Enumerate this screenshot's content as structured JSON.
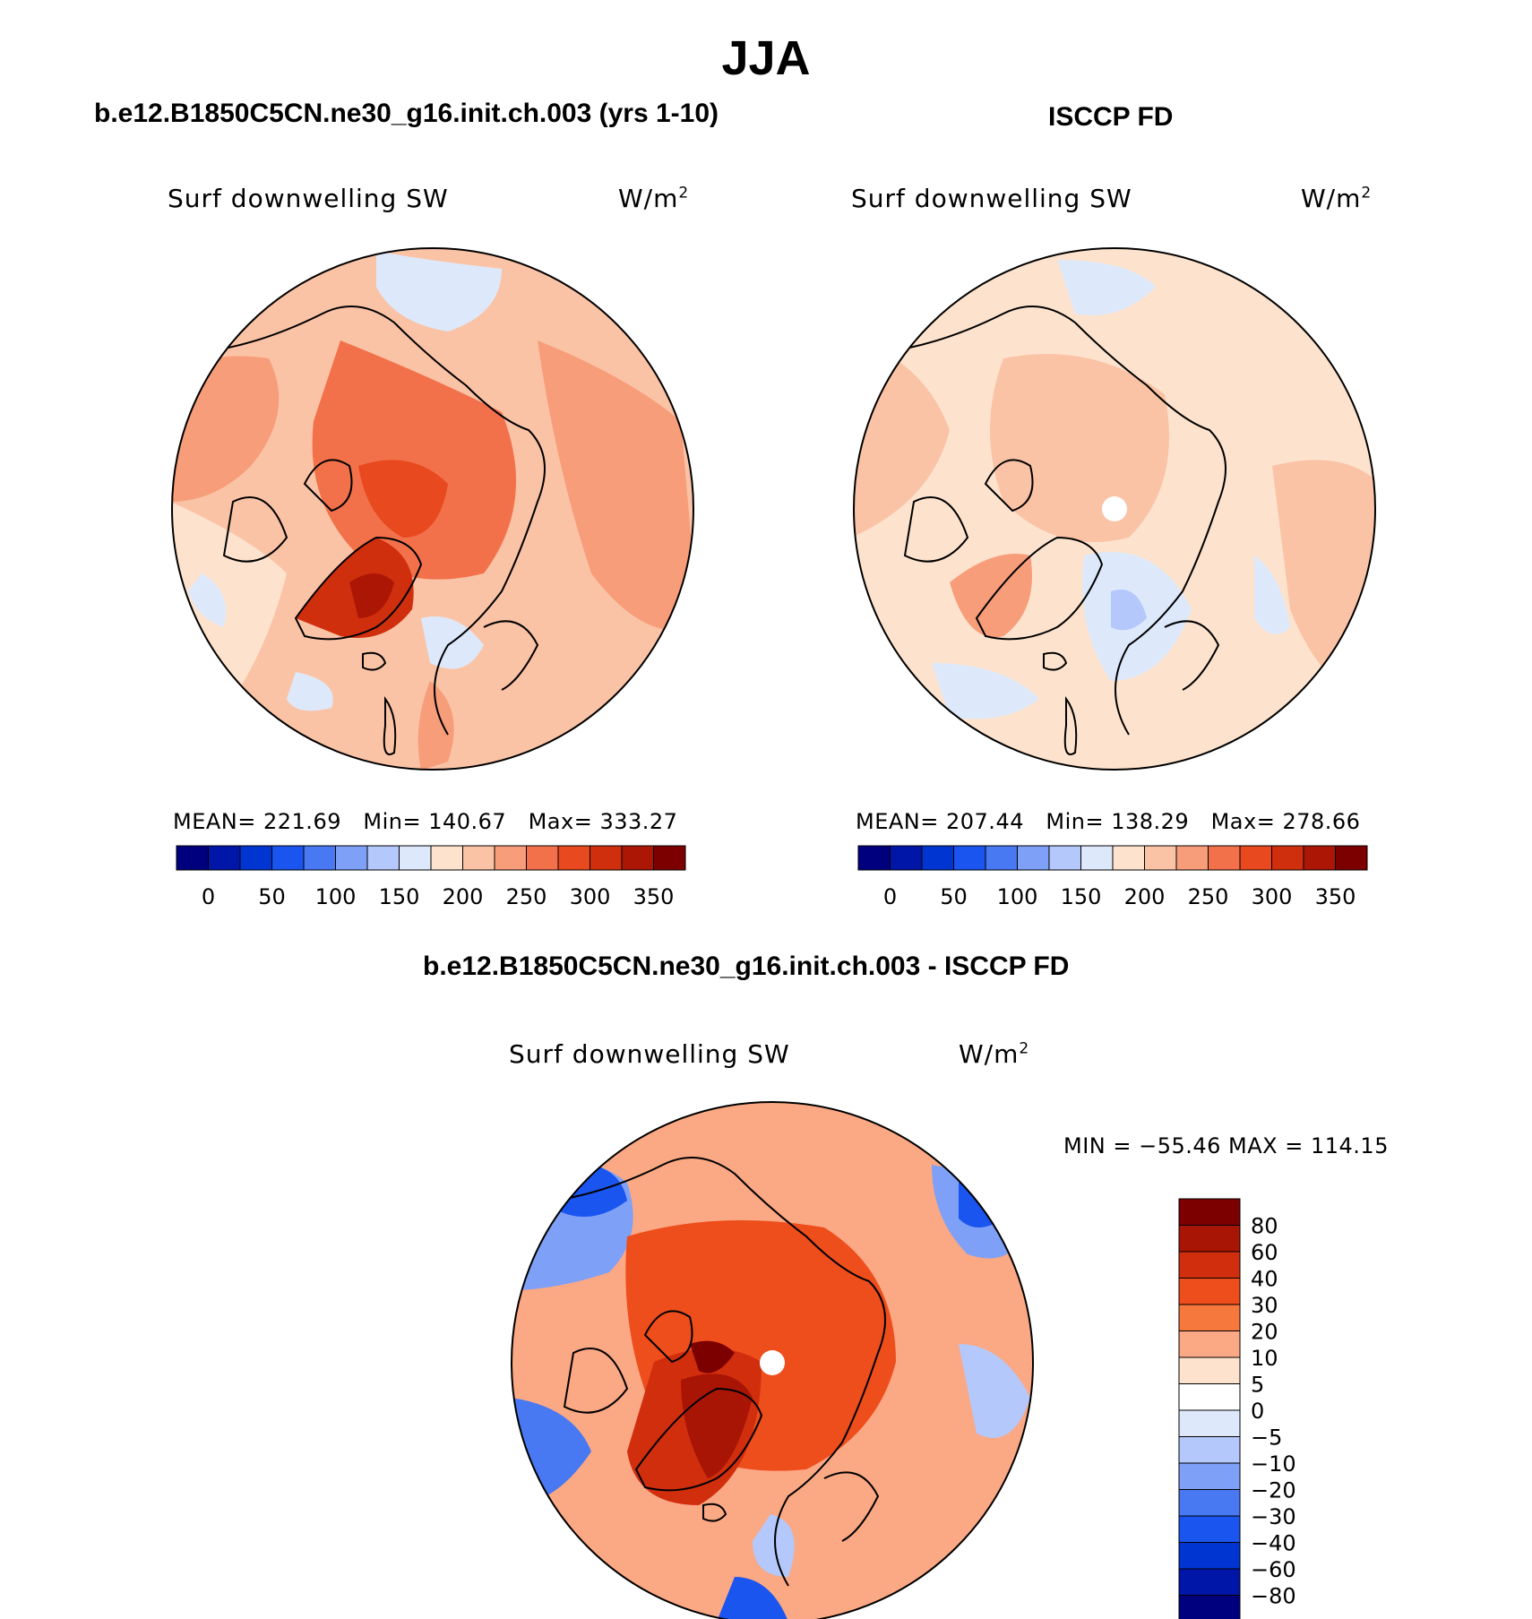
{
  "figure": {
    "title": "JJA"
  },
  "panels": [
    {
      "id": "model",
      "case_title": "b.e12.B1850C5CN.ne30_g16.init.ch.003 (yrs 1-10)",
      "variable": "Surf downwelling SW",
      "units_base": "W/m",
      "units_sup": "2",
      "stats": {
        "mean_label": "MEAN=",
        "mean": "221.69",
        "min_label": "Min=",
        "min": "140.67",
        "max_label": "Max=",
        "max": "333.27"
      },
      "colorbar_ticks": [
        "0",
        "50",
        "100",
        "150",
        "200",
        "250",
        "300",
        "350"
      ]
    },
    {
      "id": "obs",
      "case_title": "ISCCP FD",
      "variable": "Surf downwelling SW",
      "units_base": "W/m",
      "units_sup": "2",
      "stats": {
        "mean_label": "MEAN=",
        "mean": "207.44",
        "min_label": "Min=",
        "min": "138.29",
        "max_label": "Max=",
        "max": "278.66"
      },
      "colorbar_ticks": [
        "0",
        "50",
        "100",
        "150",
        "200",
        "250",
        "300",
        "350"
      ]
    },
    {
      "id": "diff",
      "case_title": "b.e12.B1850C5CN.ne30_g16.init.ch.003 - ISCCP FD",
      "variable": "Surf downwelling SW",
      "units_base": "W/m",
      "units_sup": "2",
      "minmax": "MIN = −55.46 MAX = 114.15",
      "colorbar_ticks": [
        "80",
        "60",
        "40",
        "30",
        "20",
        "10",
        "5",
        "0",
        "−5",
        "−10",
        "−20",
        "−30",
        "−40",
        "−60",
        "−80"
      ]
    }
  ],
  "palettes": {
    "abs_colors": [
      "#00007f",
      "#0016a8",
      "#0035d2",
      "#1a55f0",
      "#4878f2",
      "#7fa0f7",
      "#b4c8fb",
      "#dde9fb",
      "#fde3ce",
      "#fbc3a6",
      "#f79d79",
      "#f2714a",
      "#e8491f",
      "#d02f0e",
      "#ac1705",
      "#7d0000"
    ],
    "diff_colors": [
      "#7d0000",
      "#a81505",
      "#d12e0e",
      "#ee4d1c",
      "#f7783c",
      "#fba884",
      "#fde2cd",
      "#ffffff",
      "#dde9fb",
      "#b4c8fb",
      "#7fa0f7",
      "#4878f2",
      "#1a55f0",
      "#0035d2",
      "#0016a8",
      "#00007f"
    ]
  }
}
